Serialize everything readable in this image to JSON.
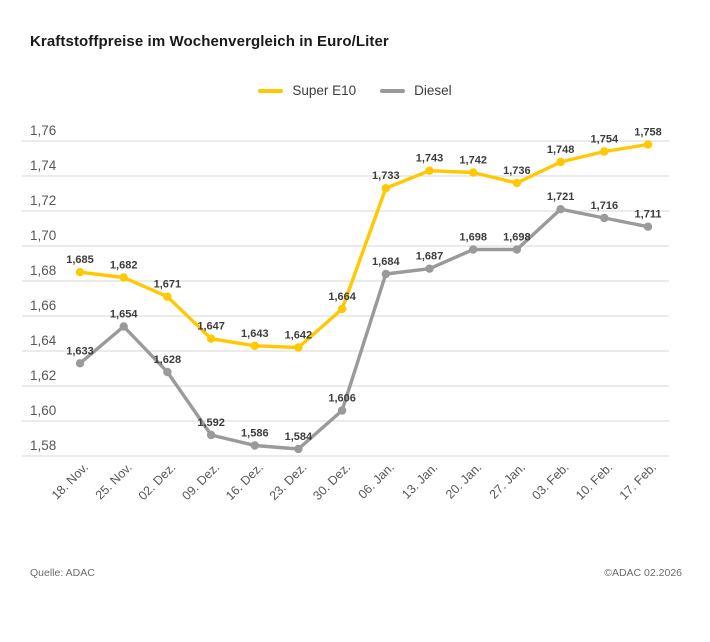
{
  "title": "Kraftstoffpreise im Wochenvergleich in Euro/Liter",
  "footer": {
    "source": "Quelle: ADAC",
    "copyright": "©ADAC 02.2026"
  },
  "chart_data": {
    "type": "line",
    "title": "Kraftstoffpreise im Wochenvergleich in Euro/Liter",
    "unit": "Euro/Liter",
    "categories": [
      "18. Nov.",
      "25. Nov.",
      "02. Dez.",
      "09. Dez.",
      "16. Dez.",
      "23. Dez.",
      "30. Dez.",
      "06. Jan.",
      "13. Jan.",
      "20. Jan.",
      "27. Jan.",
      "03. Feb.",
      "10. Feb.",
      "17. Feb."
    ],
    "series": [
      {
        "name": "Super E10",
        "color": "#FFC800",
        "values": [
          1.685,
          1.682,
          1.671,
          1.647,
          1.643,
          1.642,
          1.664,
          1.733,
          1.743,
          1.742,
          1.736,
          1.748,
          1.754,
          1.758
        ]
      },
      {
        "name": "Diesel",
        "color": "#9A9A9A",
        "values": [
          1.633,
          1.654,
          1.628,
          1.592,
          1.586,
          1.584,
          1.606,
          1.684,
          1.687,
          1.698,
          1.698,
          1.721,
          1.716,
          1.711
        ]
      }
    ],
    "ylim": [
      1.58,
      1.76
    ],
    "ytick_step": 0.02,
    "ytick_labels": [
      "1,58",
      "1,60",
      "1,62",
      "1,64",
      "1,66",
      "1,68",
      "1,70",
      "1,72",
      "1,74",
      "1,76"
    ],
    "grid": true,
    "legend_position": "top-center",
    "value_label_format": "comma-decimal-3dp"
  },
  "colors": {
    "super_e10": "#FFC800",
    "diesel": "#9A9A9A",
    "grid": "#D7D7D7",
    "title_text": "#1A1A19",
    "axis_text": "#575756",
    "value_text": "#3C3C3B",
    "footer_text": "#6B6B6B",
    "background": "#FFFFFF"
  }
}
